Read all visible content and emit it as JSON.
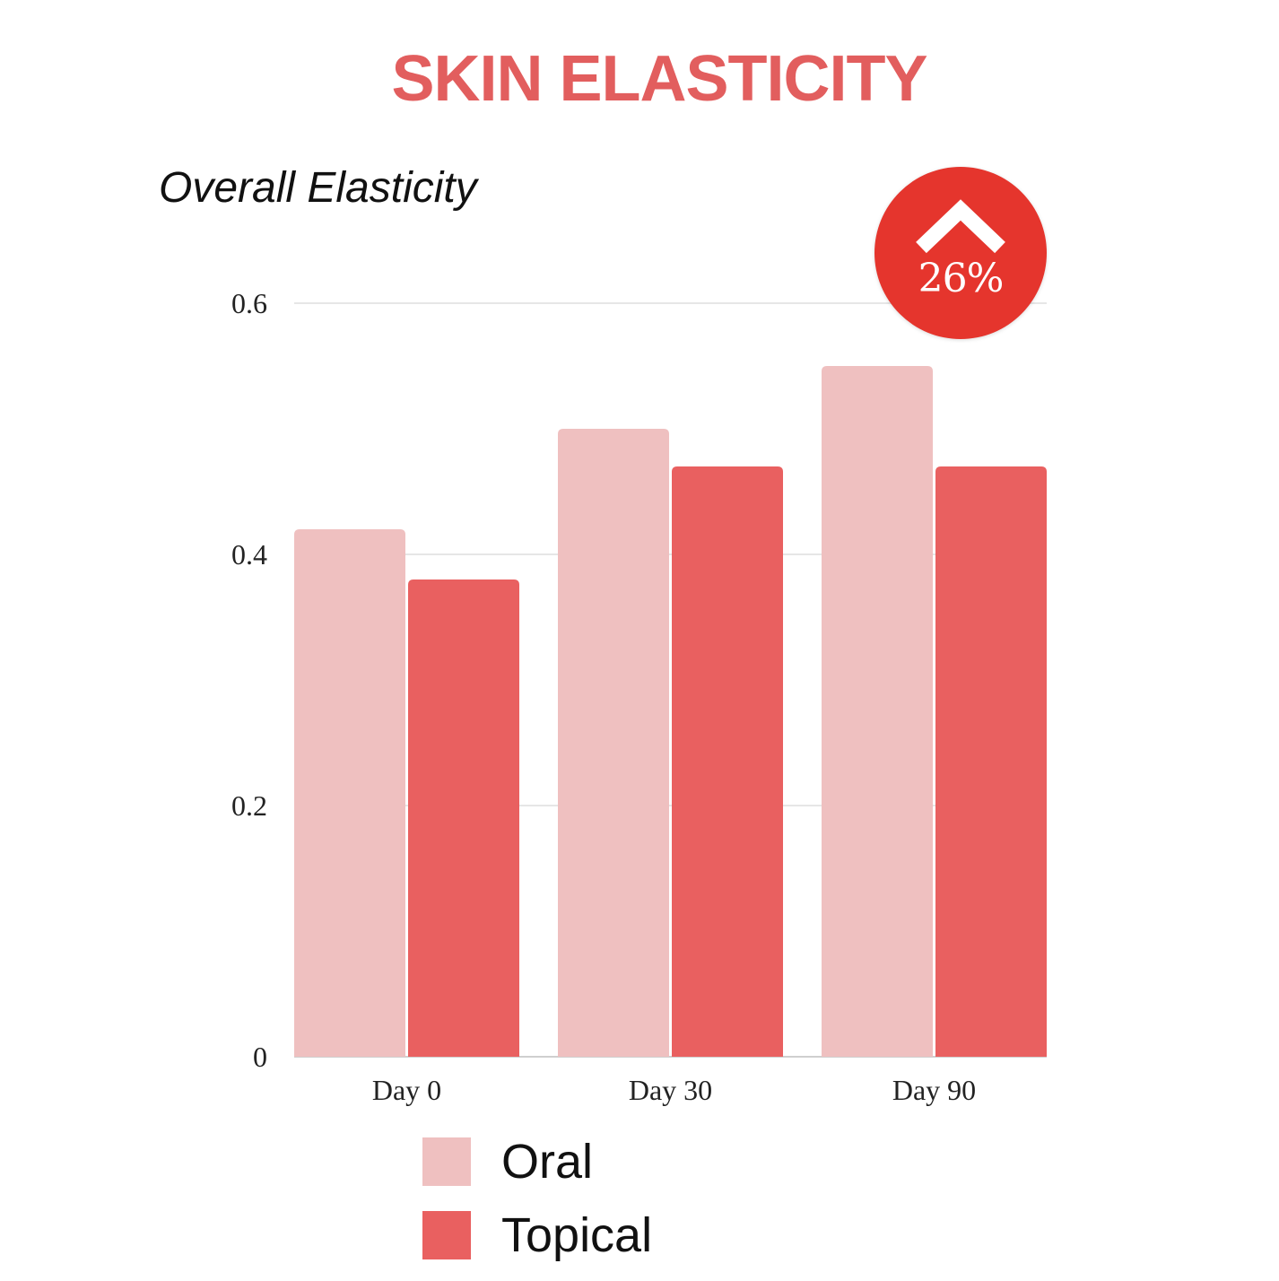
{
  "colors": {
    "title": "#e25e5e",
    "oral": "#efc0c0",
    "topical": "#e96060",
    "badge": "#e5352d",
    "grid": "#e6e6e6"
  },
  "badge": {
    "icon": "chevron-up-icon",
    "text": "26%"
  },
  "chart_data": {
    "type": "bar",
    "title": "SKIN ELASTICITY",
    "subtitle": "Overall Elasticity",
    "categories": [
      "Day 0",
      "Day 30",
      "Day 90"
    ],
    "series": [
      {
        "name": "Oral",
        "values": [
          0.42,
          0.5,
          0.55
        ]
      },
      {
        "name": "Topical",
        "values": [
          0.38,
          0.47,
          0.47
        ]
      }
    ],
    "ylim": [
      0,
      0.6
    ],
    "yticks": [
      "0",
      "0.2",
      "0.4",
      "0.6"
    ],
    "ytick_values": [
      0,
      0.2,
      0.4,
      0.6
    ],
    "grid": true,
    "legend": "bottom"
  }
}
